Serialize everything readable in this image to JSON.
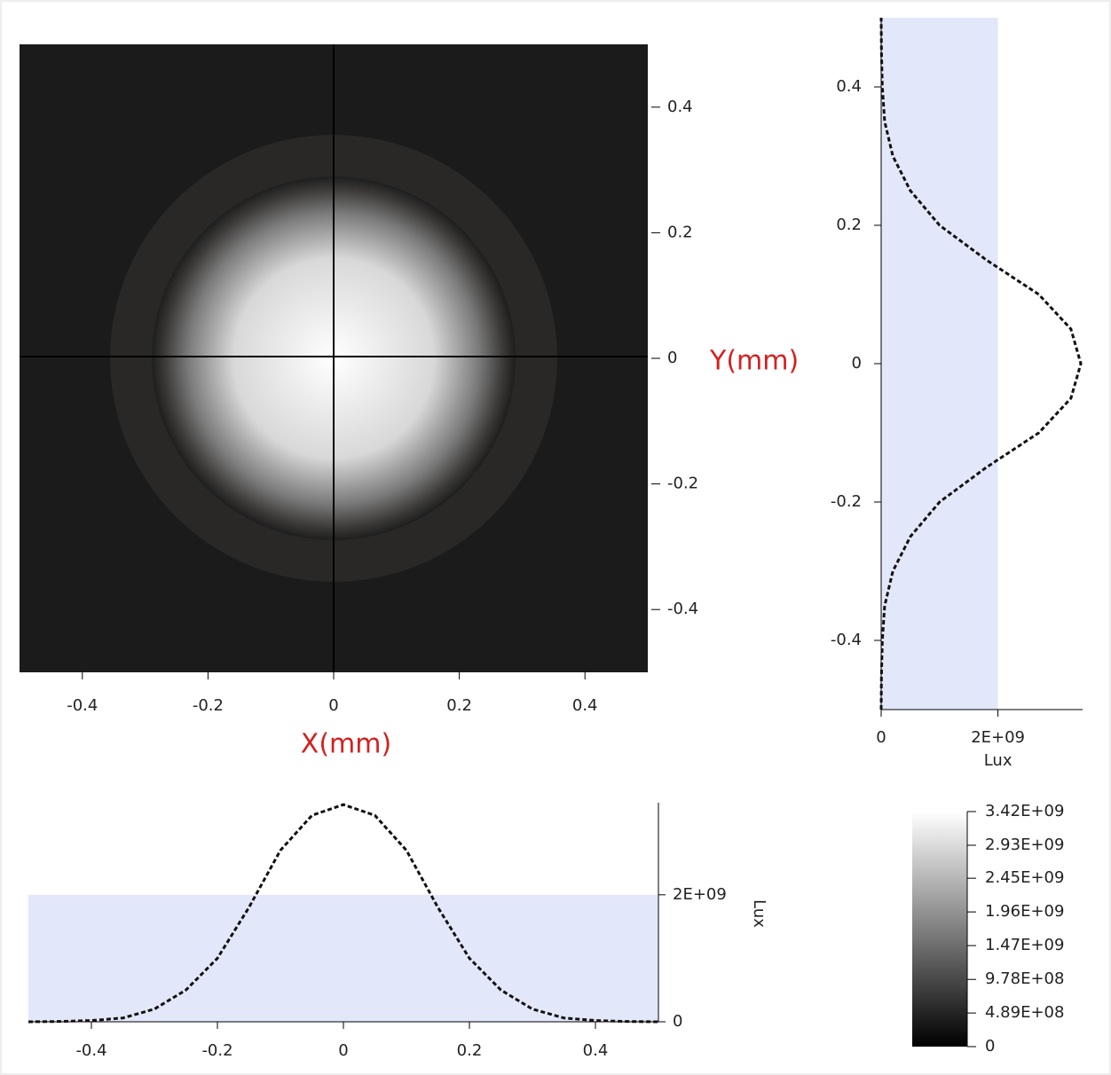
{
  "chart_data": [
    {
      "type": "heatmap",
      "xlabel": "X(mm)",
      "ylabel": "Y(mm)",
      "xlim": [
        -0.5,
        0.5
      ],
      "ylim": [
        -0.5,
        0.5
      ],
      "xticks": [
        -0.4,
        -0.2,
        0,
        0.2,
        0.4
      ],
      "yticks": [
        -0.4,
        -0.2,
        0,
        0.2,
        0.4
      ]
    },
    {
      "type": "vprofile",
      "xlabel": "Lux",
      "x": [
        -0.5,
        -0.45,
        -0.4,
        -0.35,
        -0.3,
        -0.25,
        -0.2,
        -0.15,
        -0.1,
        -0.05,
        0,
        0.05,
        0.1,
        0.15,
        0.2,
        0.25,
        0.3,
        0.35,
        0.4,
        0.45,
        0.5
      ],
      "values": [
        0,
        5000000,
        20000000,
        60000000,
        200000000,
        500000000,
        1000000000,
        1800000000,
        2700000000,
        3250000000,
        3420000000,
        3250000000,
        2700000000,
        1800000000,
        1000000000,
        500000000,
        200000000,
        60000000,
        20000000,
        5000000,
        0
      ],
      "xlim": [
        0,
        3450000000
      ],
      "xticks": [
        0,
        {
          "value": 2000000000,
          "label": "2E+09"
        }
      ],
      "ylim": [
        -0.5,
        0.5
      ],
      "yticks": [
        -0.4,
        -0.2,
        0,
        0.2,
        0.4
      ]
    },
    {
      "type": "hprofile",
      "ylabel": "Lux",
      "x": [
        -0.5,
        -0.45,
        -0.4,
        -0.35,
        -0.3,
        -0.25,
        -0.2,
        -0.15,
        -0.1,
        -0.05,
        0,
        0.05,
        0.1,
        0.15,
        0.2,
        0.25,
        0.3,
        0.35,
        0.4,
        0.45,
        0.5
      ],
      "values": [
        0,
        5000000,
        20000000,
        60000000,
        200000000,
        500000000,
        1000000000,
        1800000000,
        2700000000,
        3250000000,
        3420000000,
        3250000000,
        2700000000,
        1800000000,
        1000000000,
        500000000,
        200000000,
        60000000,
        20000000,
        5000000,
        0
      ],
      "xlim": [
        -0.5,
        0.5
      ],
      "xticks": [
        -0.4,
        -0.2,
        0,
        0.2,
        0.4
      ],
      "ylim": [
        0,
        3450000000
      ],
      "yticks": [
        0,
        {
          "value": 2000000000,
          "label": "2E+09"
        }
      ]
    },
    {
      "type": "colorbar",
      "ylim": [
        0,
        3420000000
      ],
      "yticks": [
        {
          "value": 3420000000,
          "label": "3.42E+09"
        },
        {
          "value": 2930000000,
          "label": "2.93E+09"
        },
        {
          "value": 2450000000,
          "label": "2.45E+09"
        },
        {
          "value": 1960000000,
          "label": "1.96E+09"
        },
        {
          "value": 1470000000,
          "label": "1.47E+09"
        },
        {
          "value": 978000000,
          "label": "9.78E+08"
        },
        {
          "value": 489000000,
          "label": "4.89E+08"
        },
        0
      ]
    }
  ]
}
